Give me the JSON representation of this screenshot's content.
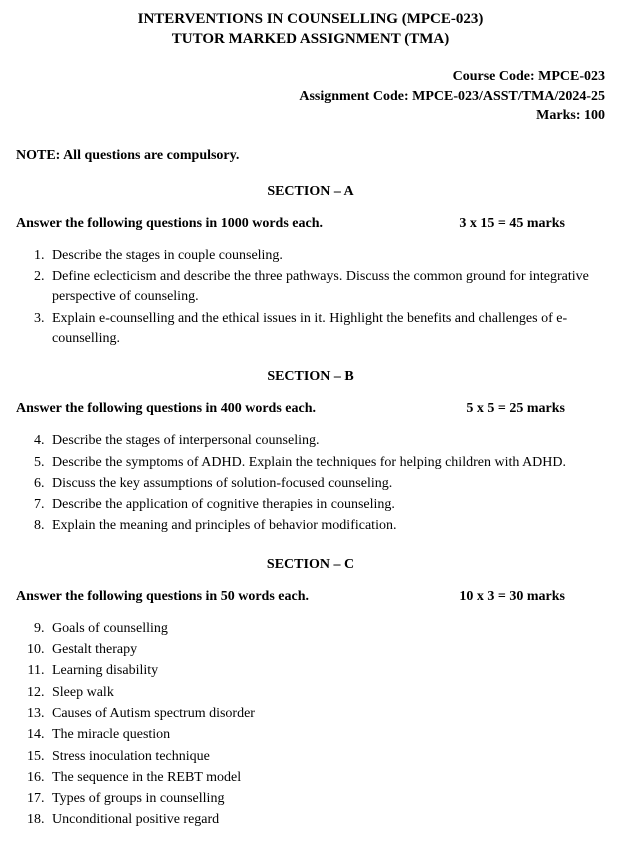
{
  "header": {
    "title_line1": "INTERVENTIONS IN COUNSELLING (MPCE-023)",
    "title_line2": "TUTOR MARKED ASSIGNMENT (TMA)"
  },
  "course_info": {
    "course_code": "Course Code: MPCE-023",
    "assignment_code": "Assignment Code: MPCE-023/ASST/TMA/2024-25",
    "marks": "Marks: 100"
  },
  "note": "NOTE: All questions are compulsory.",
  "sections": {
    "a": {
      "title": "SECTION – A",
      "instruction": "Answer the following questions in 1000 words each.",
      "marks": "3 x 15 = 45 marks",
      "start": 1,
      "questions": [
        "Describe the stages in couple counseling.",
        "Define eclecticism and describe the three pathways. Discuss the common ground for integrative perspective of counseling.",
        "Explain e-counselling and the ethical issues in it. Highlight the benefits and challenges of e-counselling."
      ]
    },
    "b": {
      "title": "SECTION – B",
      "instruction": "Answer the following questions in 400 words each.",
      "marks": "5 x 5 = 25 marks",
      "start": 4,
      "questions": [
        "Describe the stages of interpersonal counseling.",
        "Describe the symptoms of ADHD. Explain the techniques for helping children with   ADHD.",
        "Discuss the key assumptions of solution-focused counseling.",
        "Describe the application of cognitive therapies in counseling.",
        "Explain the meaning and principles of behavior modification."
      ]
    },
    "c": {
      "title": "SECTION – C",
      "instruction": "Answer the following questions in 50 words each.",
      "marks": "10 x 3 = 30 marks",
      "start": 9,
      "questions": [
        "Goals of counselling",
        "Gestalt therapy",
        "Learning disability",
        "Sleep walk",
        "Causes of Autism spectrum disorder",
        "The miracle question",
        "Stress inoculation technique",
        "The sequence in the REBT model",
        "Types of groups in counselling",
        "Unconditional positive regard"
      ]
    }
  }
}
